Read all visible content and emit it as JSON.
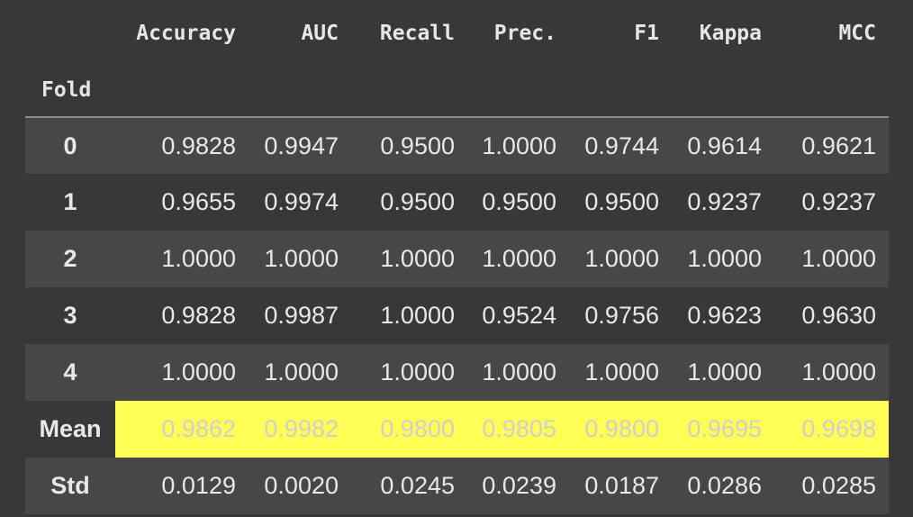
{
  "table": {
    "columns": [
      "Accuracy",
      "AUC",
      "Recall",
      "Prec.",
      "F1",
      "Kappa",
      "MCC"
    ],
    "index_name": "Fold",
    "rows": [
      {
        "label": "0",
        "values": [
          "0.9828",
          "0.9947",
          "0.9500",
          "1.0000",
          "0.9744",
          "0.9614",
          "0.9621"
        ]
      },
      {
        "label": "1",
        "values": [
          "0.9655",
          "0.9974",
          "0.9500",
          "0.9500",
          "0.9500",
          "0.9237",
          "0.9237"
        ]
      },
      {
        "label": "2",
        "values": [
          "1.0000",
          "1.0000",
          "1.0000",
          "1.0000",
          "1.0000",
          "1.0000",
          "1.0000"
        ]
      },
      {
        "label": "3",
        "values": [
          "0.9828",
          "0.9987",
          "1.0000",
          "0.9524",
          "0.9756",
          "0.9623",
          "0.9630"
        ]
      },
      {
        "label": "4",
        "values": [
          "1.0000",
          "1.0000",
          "1.0000",
          "1.0000",
          "1.0000",
          "1.0000",
          "1.0000"
        ]
      },
      {
        "label": "Mean",
        "values": [
          "0.9862",
          "0.9982",
          "0.9800",
          "0.9805",
          "0.9800",
          "0.9695",
          "0.9698"
        ]
      },
      {
        "label": "Std",
        "values": [
          "0.0129",
          "0.0020",
          "0.0245",
          "0.0239",
          "0.0187",
          "0.0286",
          "0.0285"
        ]
      }
    ]
  },
  "colors": {
    "background": "#383838",
    "stripe": "#474747",
    "highlight": "#ffff55"
  }
}
